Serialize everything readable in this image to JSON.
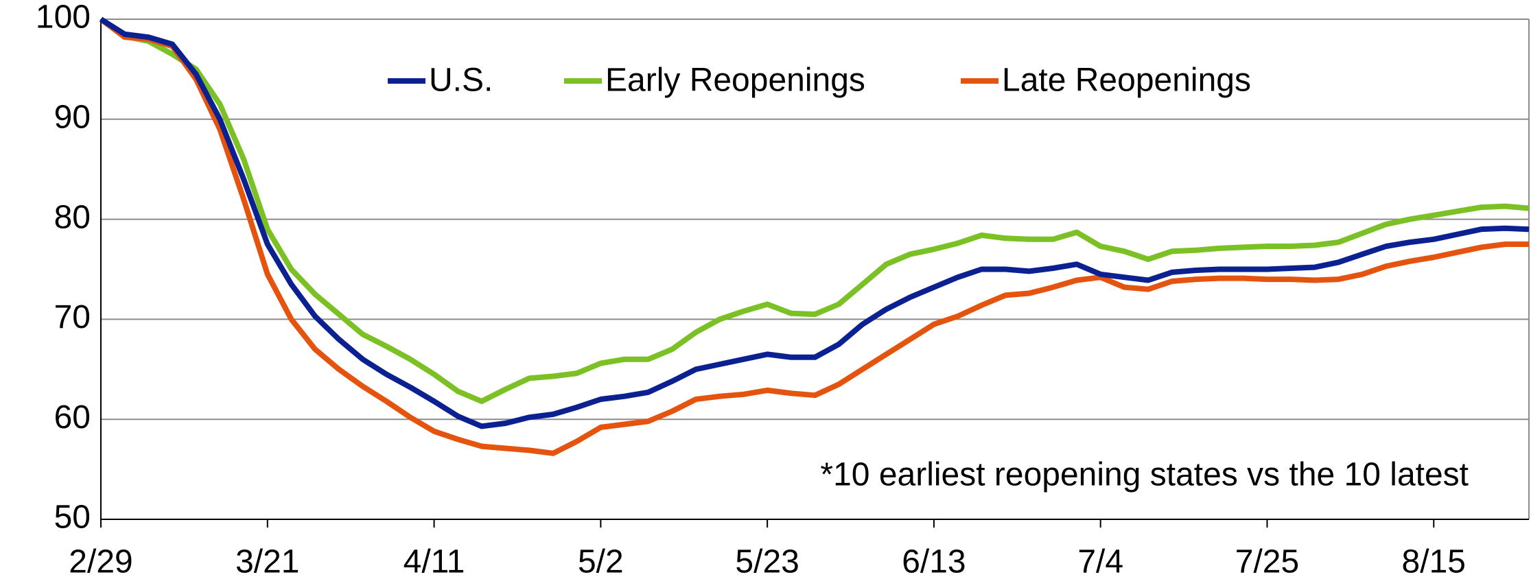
{
  "chart_data": {
    "type": "line",
    "categories": [
      "2/29",
      null,
      null,
      null,
      null,
      null,
      null,
      "3/21",
      null,
      null,
      null,
      null,
      null,
      null,
      "4/11",
      null,
      null,
      null,
      null,
      null,
      null,
      "5/2",
      null,
      null,
      null,
      null,
      null,
      null,
      "5/23",
      null,
      null,
      null,
      null,
      null,
      null,
      "6/13",
      null,
      null,
      null,
      null,
      null,
      null,
      "7/4",
      null,
      null,
      null,
      null,
      null,
      null,
      "7/25",
      null,
      null,
      null,
      null,
      null,
      null,
      "8/15",
      null,
      null,
      null,
      null
    ],
    "series": [
      {
        "name": "U.S.",
        "color": "#0b2191",
        "values": [
          100,
          98.5,
          98.2,
          97.5,
          94.5,
          90,
          84,
          77.5,
          73.5,
          70.3,
          68,
          66,
          64.5,
          63.2,
          61.8,
          60.3,
          59.3,
          59.6,
          60.2,
          60.5,
          61.2,
          62,
          62.3,
          62.7,
          63.8,
          65,
          65.5,
          66,
          66.5,
          66.2,
          66.2,
          67.5,
          69.5,
          71,
          72.2,
          73.2,
          74.2,
          75,
          75,
          74.8,
          75.1,
          75.5,
          74.5,
          74.2,
          73.9,
          74.7,
          74.9,
          75,
          75,
          75,
          75.1,
          75.2,
          75.7,
          76.5,
          77.3,
          77.7,
          78,
          78.5,
          79,
          79.1,
          79
        ]
      },
      {
        "name": "Early Reopenings",
        "color": "#7bc025",
        "values": [
          100,
          98.3,
          97.8,
          96.5,
          95,
          91.5,
          86,
          79,
          75,
          72.5,
          70.5,
          68.5,
          67.3,
          66,
          64.5,
          62.8,
          61.8,
          63,
          64.1,
          64.3,
          64.6,
          65.6,
          66,
          66,
          67,
          68.7,
          70,
          70.8,
          71.5,
          70.6,
          70.5,
          71.5,
          73.5,
          75.5,
          76.5,
          77,
          77.6,
          78.4,
          78.1,
          78,
          78,
          78.7,
          77.3,
          76.8,
          76,
          76.8,
          76.9,
          77.1,
          77.2,
          77.3,
          77.3,
          77.4,
          77.7,
          78.6,
          79.5,
          80,
          80.4,
          80.8,
          81.2,
          81.3,
          81.1
        ]
      },
      {
        "name": "Late Reopenings",
        "color": "#e5540f",
        "values": [
          100,
          98.2,
          98,
          97.3,
          94,
          89,
          82,
          74.5,
          70,
          67,
          65,
          63.3,
          61.8,
          60.2,
          58.8,
          58,
          57.3,
          57.1,
          56.9,
          56.6,
          57.8,
          59.2,
          59.5,
          59.8,
          60.8,
          62,
          62.3,
          62.5,
          62.9,
          62.6,
          62.4,
          63.5,
          65,
          66.5,
          68,
          69.5,
          70.3,
          71.4,
          72.4,
          72.6,
          73.2,
          73.9,
          74.2,
          73.2,
          73,
          73.8,
          74,
          74.1,
          74.1,
          74,
          74,
          73.9,
          74,
          74.5,
          75.3,
          75.8,
          76.2,
          76.7,
          77.2,
          77.5,
          77.5
        ]
      }
    ],
    "ylim": [
      50,
      100
    ],
    "yticks": [
      50,
      60,
      70,
      80,
      90,
      100
    ],
    "grid": true,
    "annotation": "*10 earliest reopening states vs the 10 latest"
  }
}
